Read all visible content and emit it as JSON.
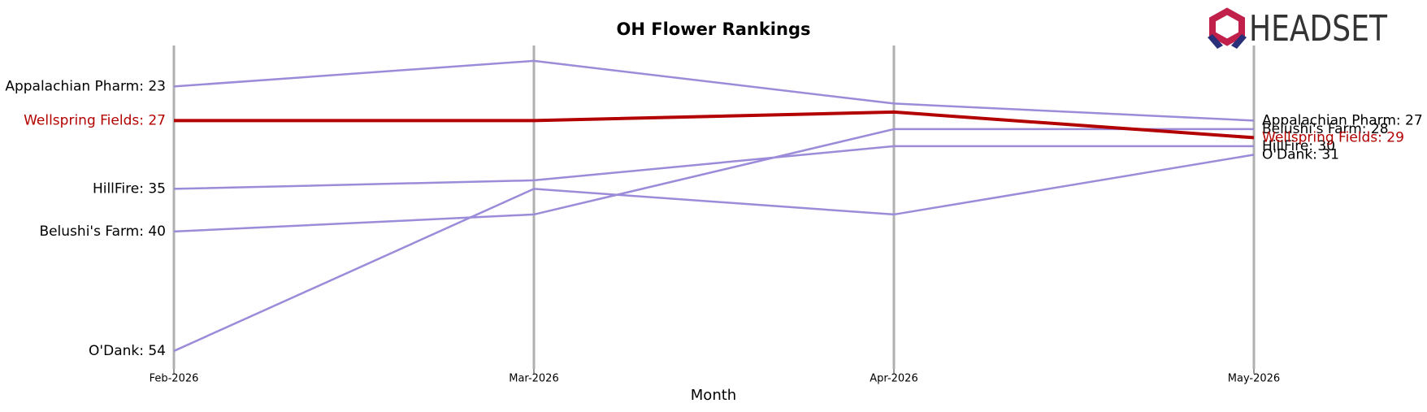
{
  "chart_data": {
    "type": "bump",
    "title": "OH Flower Rankings",
    "logo": "HEADSET",
    "x_label": "Month",
    "categories": [
      "Feb-2026",
      "Mar-2026",
      "Apr-2026",
      "May-2026"
    ],
    "ylim": [
      56.1,
      18.2
    ],
    "series": [
      {
        "name": "Appalachian Pharm",
        "color": "#9b8bd9",
        "values": [
          23,
          20,
          25,
          27
        ],
        "value_labels": [
          "Appalachian Pharm: 23",
          null,
          null,
          "Appalachian Pharm: 27"
        ]
      },
      {
        "name": "HillFire",
        "color": "#9b8bd9",
        "values": [
          35,
          34,
          30,
          30
        ],
        "value_labels": [
          "HillFire: 35",
          null,
          null,
          "HillFire: 30"
        ]
      },
      {
        "name": "Belushi's Farm",
        "color": "#9b8bd9",
        "values": [
          40,
          38,
          28,
          28
        ],
        "value_labels": [
          "Belushi's Farm: 40",
          null,
          null,
          "Belushi's Farm: 28"
        ]
      },
      {
        "name": "O'Dank",
        "color": "#9b8bd9",
        "values": [
          54,
          35,
          38,
          31
        ],
        "value_labels": [
          "O'Dank: 54",
          null,
          null,
          "O'Dank: 31"
        ]
      },
      {
        "name": "Wellspring Fields",
        "color": "#b30000",
        "highlight": true,
        "values": [
          27,
          27,
          26,
          29
        ],
        "value_labels": [
          "Wellspring Fields: 27",
          null,
          null,
          "Wellspring Fields: 29"
        ]
      }
    ]
  }
}
